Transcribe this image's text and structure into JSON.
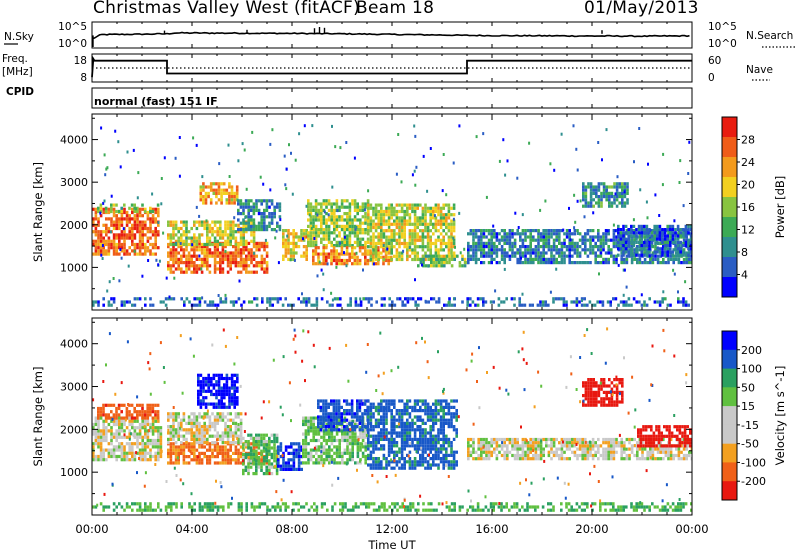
{
  "header": {
    "title": "Christmas Valley West (fitACF)",
    "beam": "Beam 18",
    "date": "01/May/2013"
  },
  "side_labels": {
    "nsky": "N.Sky",
    "freq_line1": "Freq.",
    "freq_line2": "[MHz]",
    "cpid": "CPID",
    "nsearch": "N.Search",
    "nave": "Nave"
  },
  "cpid_text": "normal (fast) 151 IF",
  "colors": {
    "power": [
      "#0000ff",
      "#2a5dc4",
      "#2f8f8f",
      "#3caa55",
      "#88c440",
      "#f2d020",
      "#f39a1c",
      "#ef5c18",
      "#e81c10"
    ],
    "velocity": [
      "#e81810",
      "#f06018",
      "#f3a020",
      "#c9c9c9",
      "#c9c9c9",
      "#60c040",
      "#2aa060",
      "#1858c8",
      "#0000ff"
    ]
  },
  "chart_data": [
    {
      "type": "line",
      "panel": "noise",
      "left_ticks": [
        "10^5",
        "10^0"
      ],
      "right_ticks": [
        "10^5",
        "10^0"
      ],
      "series": [
        {
          "name": "N.Sky",
          "x": [
            0,
            0.3,
            0.4,
            2,
            3,
            3.3,
            4,
            6,
            8,
            9,
            10,
            12,
            14,
            15,
            16,
            18,
            20,
            22,
            24
          ],
          "y": [
            1.5,
            2.4,
            2.6,
            2.7,
            2.8,
            3.0,
            3.0,
            2.95,
            2.9,
            2.85,
            2.8,
            2.65,
            2.5,
            2.4,
            2.35,
            2.3,
            2.25,
            2.2,
            2.3
          ]
        }
      ]
    },
    {
      "type": "line",
      "panel": "frequency",
      "left_ticks": [
        "18",
        "8"
      ],
      "right_ticks": [
        "60",
        "0"
      ],
      "series": [
        {
          "name": "Freq.",
          "x": [
            0,
            0.05,
            0.1,
            3,
            3,
            15,
            15,
            24
          ],
          "y": [
            8,
            18,
            17,
            17,
            10,
            10,
            17,
            17
          ]
        },
        {
          "name": "Nave",
          "x": [
            0,
            24
          ],
          "y": [
            30,
            30
          ]
        }
      ]
    },
    {
      "type": "heatmap",
      "panel": "power",
      "ylabel": "Slant Range [km]",
      "yticks": [
        "4000",
        "3000",
        "2000",
        "1000"
      ],
      "xlim": [
        0,
        24
      ],
      "ylim": [
        0,
        4600
      ],
      "colorbar_label": "Power [dB]",
      "colorbar_ticks": [
        "28",
        "24",
        "20",
        "16",
        "12",
        "8",
        "4"
      ],
      "patches": [
        {
          "x": [
            0.0,
            2.7
          ],
          "y": [
            1300,
            2400
          ],
          "value": 26
        },
        {
          "x": [
            0.2,
            2.6
          ],
          "y": [
            2300,
            2500
          ],
          "value": 14
        },
        {
          "x": [
            3.0,
            7.0
          ],
          "y": [
            900,
            1600
          ],
          "value": 26
        },
        {
          "x": [
            3.0,
            6.5
          ],
          "y": [
            1500,
            2100
          ],
          "value": 18
        },
        {
          "x": [
            4.3,
            5.8
          ],
          "y": [
            2500,
            3000
          ],
          "value": 22
        },
        {
          "x": [
            5.8,
            7.5
          ],
          "y": [
            1900,
            2600
          ],
          "value": 8
        },
        {
          "x": [
            7.6,
            8.6
          ],
          "y": [
            1200,
            1900
          ],
          "value": 20
        },
        {
          "x": [
            8.6,
            11.0
          ],
          "y": [
            1500,
            2600
          ],
          "value": 16
        },
        {
          "x": [
            8.8,
            12.0
          ],
          "y": [
            1100,
            1500
          ],
          "value": 24
        },
        {
          "x": [
            11.0,
            14.5
          ],
          "y": [
            1200,
            2500
          ],
          "value": 18
        },
        {
          "x": [
            13.0,
            15.0
          ],
          "y": [
            1000,
            1300
          ],
          "value": 14
        },
        {
          "x": [
            15.0,
            24.0
          ],
          "y": [
            1100,
            1900
          ],
          "value": 8
        },
        {
          "x": [
            19.6,
            21.4
          ],
          "y": [
            2400,
            3000
          ],
          "value": 10
        },
        {
          "x": [
            21.0,
            24.0
          ],
          "y": [
            1300,
            2000
          ],
          "value": 6
        },
        {
          "x": [
            0.0,
            24.0
          ],
          "y": [
            100,
            300
          ],
          "value": 6
        }
      ]
    },
    {
      "type": "heatmap",
      "panel": "velocity",
      "ylabel": "Slant Range [km]",
      "yticks": [
        "4000",
        "3000",
        "2000",
        "1000"
      ],
      "xlabel": "Time UT",
      "xticks": [
        "00:00",
        "04:00",
        "08:00",
        "12:00",
        "16:00",
        "20:00",
        "00:00"
      ],
      "xlim": [
        0,
        24
      ],
      "ylim": [
        0,
        4600
      ],
      "colorbar_label": "Velocity [m s^-1]",
      "colorbar_ticks": [
        "200",
        "100",
        "50",
        "15",
        "-15",
        "-50",
        "-100",
        "-200"
      ],
      "patches": [
        {
          "x": [
            0.0,
            2.8
          ],
          "y": [
            1300,
            2300
          ],
          "value": 0
        },
        {
          "x": [
            0.2,
            2.6
          ],
          "y": [
            2300,
            2600
          ],
          "value": -80
        },
        {
          "x": [
            3.0,
            7.0
          ],
          "y": [
            1200,
            1700
          ],
          "value": -60
        },
        {
          "x": [
            3.0,
            6.0
          ],
          "y": [
            1700,
            2400
          ],
          "value": 0
        },
        {
          "x": [
            4.2,
            5.8
          ],
          "y": [
            2500,
            3300
          ],
          "value": 220
        },
        {
          "x": [
            6.0,
            7.4
          ],
          "y": [
            1000,
            1900
          ],
          "value": 40
        },
        {
          "x": [
            7.4,
            8.4
          ],
          "y": [
            1100,
            1700
          ],
          "value": 200
        },
        {
          "x": [
            8.4,
            11.0
          ],
          "y": [
            1200,
            2300
          ],
          "value": 30
        },
        {
          "x": [
            9.0,
            11.0
          ],
          "y": [
            2000,
            2700
          ],
          "value": 180
        },
        {
          "x": [
            11.0,
            14.6
          ],
          "y": [
            1100,
            2700
          ],
          "value": 120
        },
        {
          "x": [
            15.0,
            24.0
          ],
          "y": [
            1300,
            1800
          ],
          "value": 0
        },
        {
          "x": [
            19.6,
            21.2
          ],
          "y": [
            2600,
            3200
          ],
          "value": -220
        },
        {
          "x": [
            21.8,
            24.0
          ],
          "y": [
            1600,
            2100
          ],
          "value": -150
        },
        {
          "x": [
            0.0,
            24.0
          ],
          "y": [
            100,
            300
          ],
          "value": 50
        }
      ]
    }
  ]
}
